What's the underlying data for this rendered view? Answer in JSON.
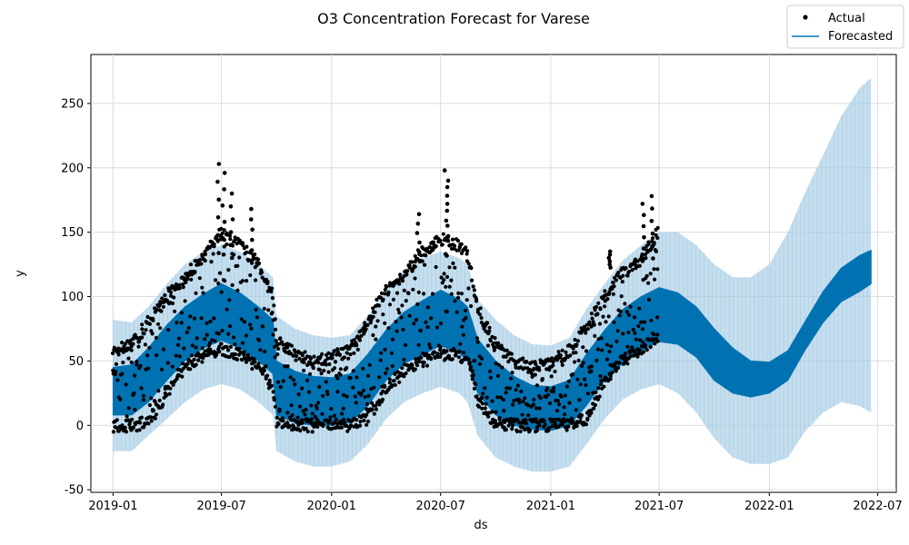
{
  "chart_data": {
    "type": "line",
    "title": "O3 Concentration Forecast for Varese",
    "xlabel": "ds",
    "ylabel": "y",
    "xlim": [
      "2018-11-25",
      "2022-08-01"
    ],
    "ylim": [
      -52,
      288
    ],
    "x_ticks": [
      "2019-01",
      "2019-07",
      "2020-01",
      "2020-07",
      "2021-01",
      "2021-07",
      "2022-01",
      "2022-07"
    ],
    "y_ticks": [
      -50,
      0,
      50,
      100,
      150,
      200,
      250
    ],
    "grid": true,
    "legend": {
      "position": "top-right",
      "entries": [
        "Actual",
        "Forecasted"
      ]
    },
    "colors": {
      "actual": "#000000",
      "forecast": "#0072b2",
      "interval": "#a6cde5"
    },
    "actual_range": [
      "2019-01-01",
      "2021-06-30"
    ],
    "forecast_range": [
      "2019-01-01",
      "2022-06-20"
    ],
    "series": [
      {
        "name": "Forecasted",
        "x": [
          "2019-01-01",
          "2019-02-01",
          "2019-03-01",
          "2019-04-01",
          "2019-05-01",
          "2019-06-01",
          "2019-07-01",
          "2019-08-01",
          "2019-09-01",
          "2019-09-25",
          "2019-10-01",
          "2019-11-01",
          "2019-12-01",
          "2020-01-01",
          "2020-02-01",
          "2020-03-01",
          "2020-04-01",
          "2020-05-01",
          "2020-06-01",
          "2020-07-01",
          "2020-08-01",
          "2020-08-15",
          "2020-09-01",
          "2020-10-01",
          "2020-11-01",
          "2020-12-01",
          "2021-01-01",
          "2021-02-01",
          "2021-03-01",
          "2021-04-01",
          "2021-05-01",
          "2021-06-01",
          "2021-07-01",
          "2021-08-01",
          "2021-09-01",
          "2021-10-01",
          "2021-11-01",
          "2021-12-01",
          "2022-01-01",
          "2022-02-01",
          "2022-03-01",
          "2022-04-01",
          "2022-05-01",
          "2022-06-01",
          "2022-06-20"
        ],
        "upper": [
          45,
          47,
          60,
          78,
          92,
          102,
          110,
          103,
          92,
          82,
          50,
          42,
          38,
          37,
          40,
          55,
          74,
          88,
          97,
          105,
          98,
          92,
          67,
          50,
          38,
          31,
          30,
          35,
          55,
          74,
          90,
          100,
          107,
          103,
          92,
          75,
          60,
          50,
          49,
          58,
          80,
          104,
          122,
          132,
          136
        ],
        "lower": [
          8,
          8,
          18,
          35,
          50,
          60,
          66,
          60,
          50,
          40,
          8,
          2,
          0,
          0,
          2,
          15,
          35,
          48,
          55,
          62,
          56,
          50,
          25,
          8,
          0,
          -3,
          -4,
          0,
          15,
          35,
          48,
          58,
          65,
          63,
          53,
          35,
          25,
          22,
          25,
          35,
          58,
          80,
          96,
          104,
          110
        ],
        "interval_upper": [
          82,
          80,
          92,
          110,
          125,
          135,
          140,
          135,
          125,
          115,
          85,
          75,
          70,
          68,
          70,
          85,
          105,
          120,
          130,
          135,
          130,
          125,
          98,
          82,
          70,
          63,
          62,
          68,
          90,
          110,
          128,
          140,
          150,
          150,
          140,
          125,
          115,
          115,
          125,
          150,
          180,
          210,
          240,
          262,
          270
        ],
        "interval_lower": [
          -20,
          -20,
          -8,
          5,
          18,
          28,
          32,
          28,
          18,
          8,
          -20,
          -28,
          -32,
          -32,
          -28,
          -15,
          5,
          18,
          25,
          30,
          25,
          18,
          -8,
          -25,
          -32,
          -36,
          -36,
          -32,
          -15,
          5,
          20,
          28,
          32,
          25,
          10,
          -10,
          -25,
          -30,
          -30,
          -25,
          -5,
          10,
          18,
          15,
          10
        ]
      },
      {
        "name": "Actual",
        "x": [
          "2019-01-01",
          "2019-02-01",
          "2019-03-01",
          "2019-04-01",
          "2019-05-01",
          "2019-06-01",
          "2019-07-01",
          "2019-08-01",
          "2019-09-01",
          "2019-09-25",
          "2019-10-01",
          "2019-11-01",
          "2019-12-01",
          "2020-01-01",
          "2020-02-01",
          "2020-03-01",
          "2020-04-01",
          "2020-05-01",
          "2020-06-01",
          "2020-07-01",
          "2020-08-01",
          "2020-08-15",
          "2020-09-01",
          "2020-10-01",
          "2020-11-01",
          "2020-12-01",
          "2021-01-01",
          "2021-02-01",
          "2021-03-01",
          "2021-04-01",
          "2021-05-01",
          "2021-06-01",
          "2021-06-30"
        ],
        "high": [
          58,
          62,
          80,
          100,
          115,
          132,
          150,
          140,
          125,
          100,
          65,
          55,
          50,
          52,
          60,
          80,
          105,
          118,
          135,
          145,
          140,
          135,
          90,
          62,
          50,
          45,
          48,
          58,
          75,
          100,
          118,
          130,
          150
        ],
        "low": [
          0,
          0,
          2,
          25,
          45,
          55,
          60,
          55,
          45,
          30,
          2,
          0,
          0,
          0,
          0,
          5,
          28,
          42,
          50,
          55,
          55,
          50,
          20,
          2,
          0,
          0,
          0,
          0,
          5,
          35,
          50,
          60,
          70
        ],
        "peaks": [
          {
            "x": "2019-06-25",
            "y": 203
          },
          {
            "x": "2019-07-05",
            "y": 196
          },
          {
            "x": "2019-07-18",
            "y": 180
          },
          {
            "x": "2019-08-20",
            "y": 168
          },
          {
            "x": "2020-07-10",
            "y": 198
          },
          {
            "x": "2020-07-12",
            "y": 190
          },
          {
            "x": "2020-05-25",
            "y": 164
          },
          {
            "x": "2021-06-20",
            "y": 178
          },
          {
            "x": "2021-06-05",
            "y": 172
          },
          {
            "x": "2021-04-10",
            "y": 135
          }
        ]
      }
    ]
  }
}
